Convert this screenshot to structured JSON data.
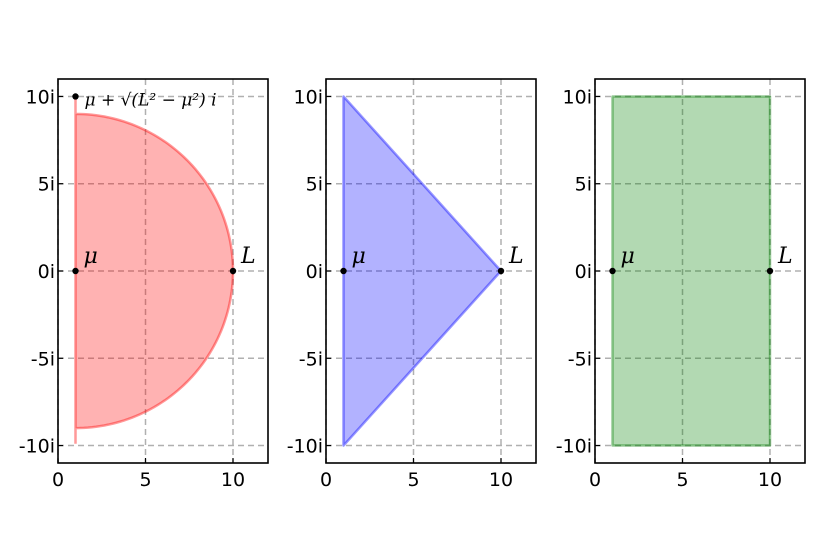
{
  "chart_data": [
    {
      "type": "area",
      "shape": "half-disk",
      "fill_color": "#ff0000",
      "fill_alpha": 0.3,
      "xlim": [
        0,
        12
      ],
      "ylim": [
        -11,
        11
      ],
      "xticks": [
        0,
        5,
        10
      ],
      "xtick_labels": [
        "0",
        "5",
        "10"
      ],
      "yticks": [
        -10,
        -5,
        0,
        5,
        10
      ],
      "ytick_labels": [
        "-10i",
        "-5i",
        "0i",
        "5i",
        "10i"
      ],
      "grid": true,
      "region": {
        "center_x": 1,
        "radius": 9,
        "x_min": 1,
        "y_min": -9.9,
        "y_max": 9.9
      },
      "points": [
        {
          "x": 1,
          "y": 0,
          "label": "μ"
        },
        {
          "x": 10,
          "y": 0,
          "label": "L"
        },
        {
          "x": 1,
          "y": 10,
          "label": "μ + √(L² − μ²) i"
        }
      ],
      "title": "",
      "xlabel": "",
      "ylabel": ""
    },
    {
      "type": "area",
      "shape": "triangle",
      "fill_color": "#0000ff",
      "fill_alpha": 0.3,
      "xlim": [
        0,
        12
      ],
      "ylim": [
        -11,
        11
      ],
      "xticks": [
        0,
        5,
        10
      ],
      "xtick_labels": [
        "0",
        "5",
        "10"
      ],
      "yticks": [
        -10,
        -5,
        0,
        5,
        10
      ],
      "ytick_labels": [
        "-10i",
        "-5i",
        "0i",
        "5i",
        "10i"
      ],
      "grid": true,
      "vertices": [
        [
          1,
          10
        ],
        [
          10,
          0
        ],
        [
          1,
          -10
        ]
      ],
      "points": [
        {
          "x": 1,
          "y": 0,
          "label": "μ"
        },
        {
          "x": 10,
          "y": 0,
          "label": "L"
        }
      ],
      "title": "",
      "xlabel": "",
      "ylabel": ""
    },
    {
      "type": "area",
      "shape": "rectangle",
      "fill_color": "#008000",
      "fill_alpha": 0.3,
      "xlim": [
        0,
        12
      ],
      "ylim": [
        -11,
        11
      ],
      "xticks": [
        0,
        5,
        10
      ],
      "xtick_labels": [
        "0",
        "5",
        "10"
      ],
      "yticks": [
        -10,
        -5,
        0,
        5,
        10
      ],
      "ytick_labels": [
        "-10i",
        "-5i",
        "0i",
        "5i",
        "10i"
      ],
      "grid": true,
      "vertices": [
        [
          1,
          10
        ],
        [
          10,
          10
        ],
        [
          10,
          -10
        ],
        [
          1,
          -10
        ]
      ],
      "points": [
        {
          "x": 1,
          "y": 0,
          "label": "μ"
        },
        {
          "x": 10,
          "y": 0,
          "label": "L"
        }
      ],
      "title": "",
      "xlabel": "",
      "ylabel": ""
    }
  ]
}
